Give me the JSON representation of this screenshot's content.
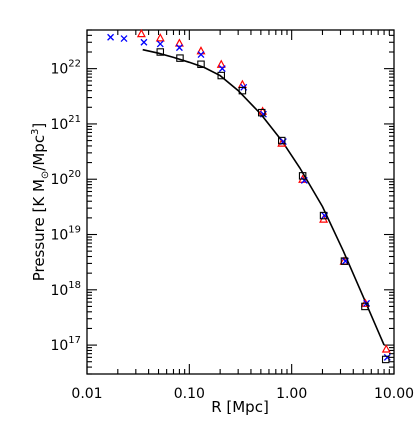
{
  "chart_data": {
    "type": "scatter",
    "title": "",
    "xlabel": "R [Mpc]",
    "ylabel": "Pressure [K M",
    "ylabel_sub": "⊙",
    "ylabel_mid": "/Mpc",
    "ylabel_sup": "3",
    "ylabel_end": "]",
    "xscale": "log",
    "yscale": "log",
    "xlim": [
      0.01,
      10.0
    ],
    "ylim": [
      3e+16,
      5e+22
    ],
    "x_ticks": [
      {
        "value": 0.01,
        "label": "0.01"
      },
      {
        "value": 0.1,
        "label": "0.10"
      },
      {
        "value": 1.0,
        "label": "1.00"
      },
      {
        "value": 10.0,
        "label": "10.00"
      }
    ],
    "y_ticks": [
      {
        "value": 1e+17,
        "base": "10",
        "exp": "17"
      },
      {
        "value": 1e+18,
        "base": "10",
        "exp": "18"
      },
      {
        "value": 1e+19,
        "base": "10",
        "exp": "19"
      },
      {
        "value": 1e+20,
        "base": "10",
        "exp": "20"
      },
      {
        "value": 1e+21,
        "base": "10",
        "exp": "21"
      },
      {
        "value": 1e+22,
        "base": "10",
        "exp": "22"
      }
    ],
    "legend": "none",
    "grid": false,
    "colors": {
      "triangles": "#ff0000",
      "crosses": "#0000ff",
      "squares": "#000000",
      "curve": "#000000"
    },
    "series": [
      {
        "marker": "line",
        "x": [
          0.035,
          0.05,
          0.07,
          0.1,
          0.14,
          0.2,
          0.3,
          0.5,
          0.8,
          1.2,
          2.0,
          3.2,
          5.0,
          8.0
        ],
        "y": [
          2.2e+22,
          1.9e+22,
          1.6e+22,
          1.3e+22,
          1.05e+22,
          7.5e+21,
          4e+21,
          1.5e+21,
          5e+20,
          1.6e+20,
          3.2e+19,
          5e+18,
          7.5e+17,
          1e+17
        ]
      },
      {
        "marker": "triangle",
        "x": [
          0.034,
          0.052,
          0.08,
          0.13,
          0.205,
          0.33,
          0.52,
          0.8,
          1.28,
          2.05,
          3.25,
          5.25,
          8.4
        ],
        "y": [
          4.3e+22,
          3.6e+22,
          2.9e+22,
          2.1e+22,
          1.2e+22,
          5.2e+21,
          1.7e+21,
          4.5e+20,
          1e+20,
          1.9e+19,
          3.3e+18,
          5.7e+17,
          8.5e+16
        ]
      },
      {
        "marker": "cross",
        "x": [
          0.017,
          0.023,
          0.036,
          0.052,
          0.08,
          0.13,
          0.21,
          0.34,
          0.53,
          0.83,
          1.33,
          2.1,
          3.35,
          5.4,
          8.6
        ],
        "y": [
          3.7e+22,
          3.5e+22,
          3e+22,
          2.8e+22,
          2.4e+22,
          1.8e+22,
          1e+22,
          4.6e+21,
          1.5e+21,
          4.8e+20,
          9.5e+19,
          2.2e+19,
          3.3e+18,
          5.7e+17,
          6e+16
        ]
      },
      {
        "marker": "square",
        "x": [
          0.052,
          0.081,
          0.13,
          0.205,
          0.33,
          0.51,
          0.8,
          1.28,
          2.05,
          3.28,
          5.2,
          8.3
        ],
        "y": [
          2e+22,
          1.55e+22,
          1.2e+22,
          7.5e+21,
          4e+21,
          1.6e+21,
          5e+20,
          1.15e+20,
          2.2e+19,
          3.3e+18,
          5e+17,
          5.5e+16
        ]
      }
    ]
  }
}
